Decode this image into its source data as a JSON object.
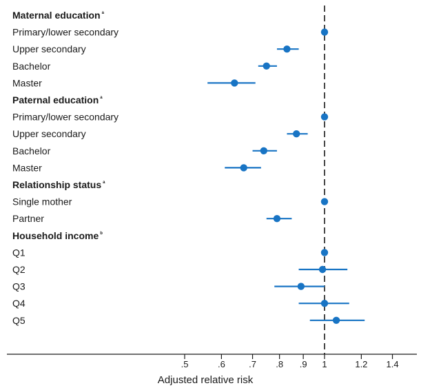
{
  "chart_data": {
    "type": "scatter",
    "subtype": "forest-plot",
    "xlabel": "Adjusted relative risk",
    "x_scale": "log",
    "xlim": [
      0.42,
      1.6
    ],
    "reference_line": {
      "x": 1,
      "style": "dashed"
    },
    "x_ticks": [
      {
        "value": 0.5,
        "label": ".5"
      },
      {
        "value": 0.6,
        "label": ".6"
      },
      {
        "value": 0.7,
        "label": ".7"
      },
      {
        "value": 0.8,
        "label": ".8"
      },
      {
        "value": 0.9,
        "label": ".9"
      },
      {
        "value": 1.0,
        "label": "1"
      },
      {
        "value": 1.2,
        "label": "1.2"
      },
      {
        "value": 1.4,
        "label": "1.4"
      }
    ],
    "marker_color": "#1874c4",
    "groups": [
      {
        "label": "Maternal education",
        "sup": "a",
        "rows": [
          {
            "label": "Primary/lower secondary",
            "estimate": 1.0,
            "ci": null
          },
          {
            "label": "Upper secondary",
            "estimate": 0.83,
            "ci": [
              0.79,
              0.88
            ]
          },
          {
            "label": "Bachelor",
            "estimate": 0.75,
            "ci": [
              0.72,
              0.79
            ]
          },
          {
            "label": "Master",
            "estimate": 0.64,
            "ci": [
              0.56,
              0.71
            ]
          }
        ]
      },
      {
        "label": "Paternal education",
        "sup": "a",
        "rows": [
          {
            "label": "Primary/lower secondary",
            "estimate": 1.0,
            "ci": null
          },
          {
            "label": "Upper secondary",
            "estimate": 0.87,
            "ci": [
              0.83,
              0.92
            ]
          },
          {
            "label": "Bachelor",
            "estimate": 0.74,
            "ci": [
              0.7,
              0.79
            ]
          },
          {
            "label": "Master",
            "estimate": 0.67,
            "ci": [
              0.61,
              0.73
            ]
          }
        ]
      },
      {
        "label": "Relationship status",
        "sup": "a",
        "rows": [
          {
            "label": "Single mother",
            "estimate": 1.0,
            "ci": null
          },
          {
            "label": "Partner",
            "estimate": 0.79,
            "ci": [
              0.75,
              0.85
            ]
          }
        ]
      },
      {
        "label": "Household income",
        "sup": "b",
        "rows": [
          {
            "label": "Q1",
            "estimate": 1.0,
            "ci": null
          },
          {
            "label": "Q2",
            "estimate": 0.99,
            "ci": [
              0.88,
              1.12
            ]
          },
          {
            "label": "Q3",
            "estimate": 0.89,
            "ci": [
              0.78,
              1.0
            ]
          },
          {
            "label": "Q4",
            "estimate": 1.0,
            "ci": [
              0.88,
              1.13
            ]
          },
          {
            "label": "Q5",
            "estimate": 1.06,
            "ci": [
              0.93,
              1.22
            ]
          }
        ]
      }
    ]
  }
}
